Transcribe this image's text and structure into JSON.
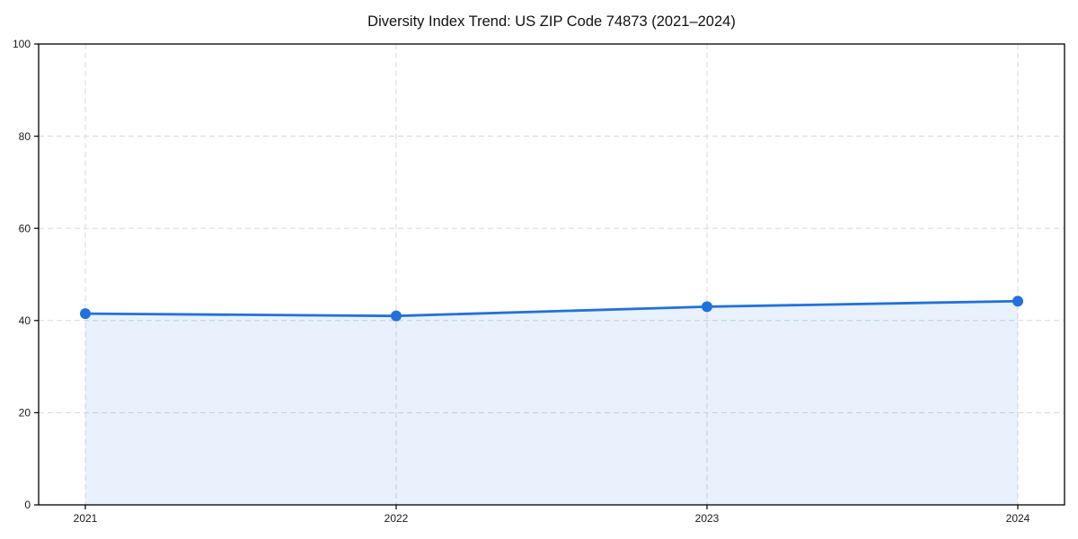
{
  "chart_data": {
    "type": "line",
    "title": "Diversity Index Trend: US ZIP Code 74873 (2021–2024)",
    "categories": [
      "2021",
      "2022",
      "2023",
      "2024"
    ],
    "series": [
      {
        "name": "Diversity Index",
        "values": [
          41.5,
          41.0,
          43.0,
          44.2
        ]
      }
    ],
    "xlabel": "",
    "ylabel": "",
    "ylim": [
      0,
      100
    ],
    "yticks": [
      0,
      20,
      40,
      60,
      80,
      100
    ],
    "grid": true,
    "grid_style": "dashed",
    "legend_position": "none",
    "area_fill": true,
    "marker": "circle",
    "colors": {
      "line": "#2171dd",
      "marker": "#2171dd",
      "area": "#2171dd",
      "area_opacity": 0.1,
      "grid": "#dcdcdc",
      "axis": "#000000",
      "text": "#1a1a1a",
      "background": "#ffffff"
    }
  }
}
